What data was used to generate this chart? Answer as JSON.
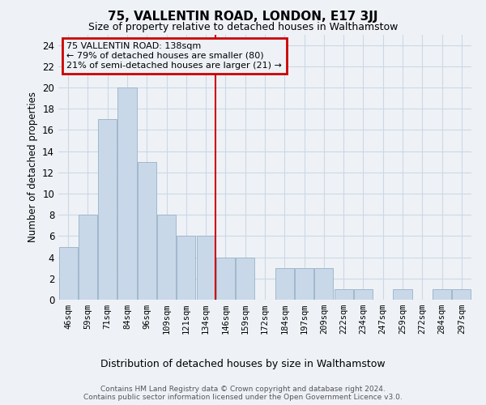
{
  "title": "75, VALLENTIN ROAD, LONDON, E17 3JJ",
  "subtitle": "Size of property relative to detached houses in Walthamstow",
  "xlabel": "Distribution of detached houses by size in Walthamstow",
  "ylabel": "Number of detached properties",
  "categories": [
    "46sqm",
    "59sqm",
    "71sqm",
    "84sqm",
    "96sqm",
    "109sqm",
    "121sqm",
    "134sqm",
    "146sqm",
    "159sqm",
    "172sqm",
    "184sqm",
    "197sqm",
    "209sqm",
    "222sqm",
    "234sqm",
    "247sqm",
    "259sqm",
    "272sqm",
    "284sqm",
    "297sqm"
  ],
  "values": [
    5,
    8,
    17,
    20,
    13,
    8,
    6,
    6,
    4,
    4,
    0,
    3,
    3,
    3,
    1,
    1,
    0,
    1,
    0,
    1,
    1
  ],
  "bar_color": "#c8d8e8",
  "bar_edge_color": "#a0b8cc",
  "vline_x": 7.5,
  "annotation_title": "75 VALLENTIN ROAD: 138sqm",
  "annotation_line1": "← 79% of detached houses are smaller (80)",
  "annotation_line2": "21% of semi-detached houses are larger (21) →",
  "annotation_box_color": "#cc0000",
  "ylim": [
    0,
    25
  ],
  "yticks": [
    0,
    2,
    4,
    6,
    8,
    10,
    12,
    14,
    16,
    18,
    20,
    22,
    24
  ],
  "grid_color": "#ccd8e4",
  "background_color": "#eef2f7",
  "title_fontsize": 11,
  "subtitle_fontsize": 9,
  "footer": "Contains HM Land Registry data © Crown copyright and database right 2024.\nContains public sector information licensed under the Open Government Licence v3.0."
}
